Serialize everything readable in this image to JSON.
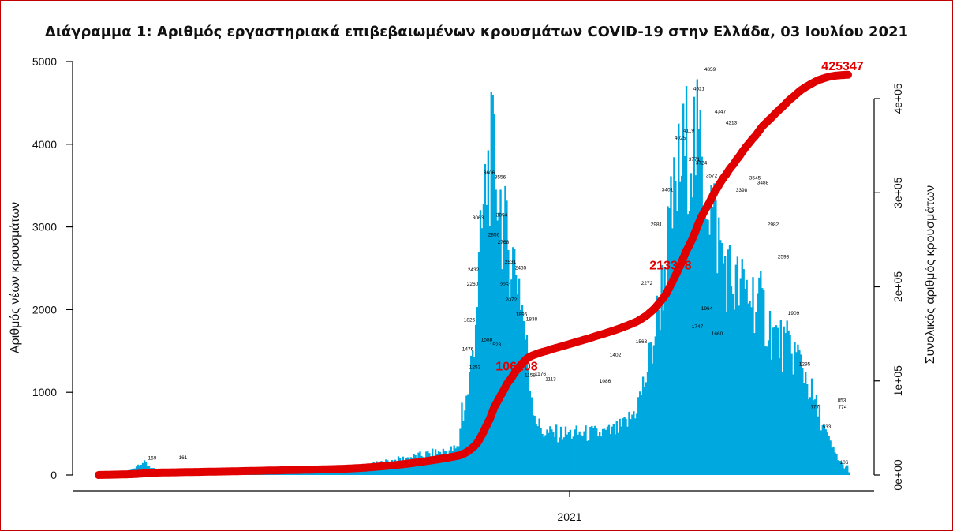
{
  "chart_data": {
    "type": "bar",
    "title": "Διάγραμμα 1: Αριθμός εργαστηριακά επιβεβαιωμένων κρουσμάτων COVID-19 στην Ελλάδα, 03 Ιουλίου 2021",
    "ylabel": "Αριθμός νέων κρουσμάτων",
    "y2label": "Συνολικός αριθμός κρουσμάτων",
    "xlabel": "",
    "x_tick_labels": [
      "2021"
    ],
    "ylim": [
      0,
      5000
    ],
    "y_ticks": [
      0,
      1000,
      2000,
      3000,
      4000,
      5000
    ],
    "y2lim": [
      0,
      425347
    ],
    "y2_ticks": [
      "0e+00",
      "1e+05",
      "2e+05",
      "3e+05",
      "4e+05"
    ],
    "y2_tick_values": [
      0,
      100000,
      200000,
      300000,
      400000
    ],
    "bar_color": "#00a8e0",
    "line_color": "#e10000",
    "grid": false,
    "legend": "none",
    "annotations": [
      {
        "text": "106208",
        "y2": 106208
      },
      {
        "text": "213398",
        "y2": 213398
      },
      {
        "text": "425347",
        "y2": 425347
      }
    ],
    "labeled_peaks": [
      {
        "label": "161",
        "value": 161
      },
      {
        "label": "159",
        "value": 159
      },
      {
        "label": "3606",
        "value": 3606
      },
      {
        "label": "3556",
        "value": 3556
      },
      {
        "label": "3063",
        "value": 3063
      },
      {
        "label": "3094",
        "value": 3094
      },
      {
        "label": "2856",
        "value": 2856
      },
      {
        "label": "2768",
        "value": 2768
      },
      {
        "label": "2531",
        "value": 2531
      },
      {
        "label": "2455",
        "value": 2455
      },
      {
        "label": "2432",
        "value": 2432
      },
      {
        "label": "2260",
        "value": 2260
      },
      {
        "label": "2251",
        "value": 2251
      },
      {
        "label": "2072",
        "value": 2072
      },
      {
        "label": "1895",
        "value": 1895
      },
      {
        "label": "1838",
        "value": 1838
      },
      {
        "label": "1826",
        "value": 1826
      },
      {
        "label": "1588",
        "value": 1588
      },
      {
        "label": "1528",
        "value": 1528
      },
      {
        "label": "1476",
        "value": 1476
      },
      {
        "label": "1253",
        "value": 1253
      },
      {
        "label": "1176",
        "value": 1176
      },
      {
        "label": "1158",
        "value": 1158
      },
      {
        "label": "1113",
        "value": 1113
      },
      {
        "label": "1086",
        "value": 1086
      },
      {
        "label": "1402",
        "value": 1402
      },
      {
        "label": "1563",
        "value": 1563
      },
      {
        "label": "2272",
        "value": 2272
      },
      {
        "label": "2981",
        "value": 2981
      },
      {
        "label": "3401",
        "value": 3401
      },
      {
        "label": "4025",
        "value": 4025
      },
      {
        "label": "4119",
        "value": 4119
      },
      {
        "label": "4621",
        "value": 4621
      },
      {
        "label": "4859",
        "value": 4859
      },
      {
        "label": "4347",
        "value": 4347
      },
      {
        "label": "4213",
        "value": 4213
      },
      {
        "label": "3771",
        "value": 3771
      },
      {
        "label": "3724",
        "value": 3724
      },
      {
        "label": "3572",
        "value": 3572
      },
      {
        "label": "3398",
        "value": 3398
      },
      {
        "label": "3545",
        "value": 3545
      },
      {
        "label": "3488",
        "value": 3488
      },
      {
        "label": "2982",
        "value": 2982
      },
      {
        "label": "2593",
        "value": 2593
      },
      {
        "label": "1964",
        "value": 1964
      },
      {
        "label": "1909",
        "value": 1909
      },
      {
        "label": "1747",
        "value": 1747
      },
      {
        "label": "1660",
        "value": 1660
      },
      {
        "label": "1295",
        "value": 1295
      },
      {
        "label": "853",
        "value": 853
      },
      {
        "label": "777",
        "value": 777
      },
      {
        "label": "774",
        "value": 774
      },
      {
        "label": "533",
        "value": 533
      },
      {
        "label": "106",
        "value": 106
      }
    ]
  }
}
